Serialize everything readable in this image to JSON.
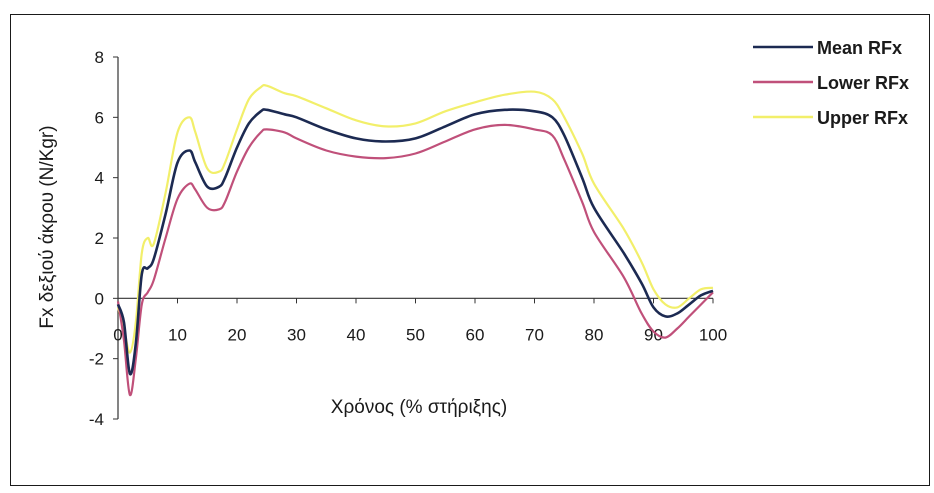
{
  "chart_data": {
    "type": "line",
    "title": "",
    "xlabel": "Χρόνος (% στήριξης)",
    "ylabel": "Fx δεξιού άκρου (N/Kgr)",
    "xlim": [
      0,
      100
    ],
    "ylim": [
      -4,
      8
    ],
    "x_ticks": [
      "0",
      "10",
      "20",
      "30",
      "40",
      "50",
      "60",
      "70",
      "80",
      "90",
      "100"
    ],
    "y_ticks": [
      "-4",
      "-2",
      "0",
      "2",
      "4",
      "6",
      "8"
    ],
    "grid": false,
    "legend_position": "top-right",
    "x": [
      0,
      1,
      2,
      3,
      4,
      5,
      6,
      8,
      10,
      12,
      13,
      15,
      17,
      18,
      20,
      22,
      24,
      25,
      28,
      30,
      35,
      40,
      45,
      50,
      55,
      60,
      65,
      70,
      73,
      75,
      78,
      80,
      85,
      88,
      90,
      92,
      94,
      96,
      98,
      100
    ],
    "series": [
      {
        "name": "Mean RFx",
        "color": "#1c2a52",
        "values": [
          -0.2,
          -0.8,
          -2.5,
          -1.5,
          0.8,
          1.0,
          1.3,
          2.8,
          4.5,
          4.9,
          4.5,
          3.7,
          3.7,
          4.0,
          5.0,
          5.8,
          6.2,
          6.25,
          6.1,
          6.0,
          5.6,
          5.3,
          5.2,
          5.3,
          5.7,
          6.1,
          6.25,
          6.2,
          6.0,
          5.4,
          4.0,
          3.0,
          1.5,
          0.5,
          -0.3,
          -0.6,
          -0.5,
          -0.2,
          0.1,
          0.25
        ]
      },
      {
        "name": "Lower RFx",
        "color": "#c0507a",
        "values": [
          -0.1,
          -1.4,
          -3.2,
          -2.0,
          -0.2,
          0.2,
          0.6,
          2.0,
          3.3,
          3.8,
          3.6,
          3.0,
          2.95,
          3.2,
          4.2,
          5.0,
          5.5,
          5.6,
          5.5,
          5.3,
          4.9,
          4.7,
          4.65,
          4.8,
          5.2,
          5.6,
          5.75,
          5.6,
          5.4,
          4.6,
          3.2,
          2.2,
          0.7,
          -0.5,
          -1.1,
          -1.3,
          -1.0,
          -0.6,
          -0.2,
          0.2
        ]
      },
      {
        "name": "Upper RFx",
        "color": "#f2ef6a",
        "values": [
          -0.3,
          -1.0,
          -1.8,
          -0.8,
          1.5,
          2.0,
          1.8,
          3.5,
          5.5,
          6.0,
          5.5,
          4.3,
          4.2,
          4.5,
          5.6,
          6.6,
          7.0,
          7.05,
          6.8,
          6.7,
          6.3,
          5.9,
          5.7,
          5.8,
          6.2,
          6.5,
          6.75,
          6.85,
          6.6,
          6.0,
          4.8,
          3.8,
          2.3,
          1.2,
          0.3,
          -0.2,
          -0.3,
          0.0,
          0.3,
          0.35
        ]
      }
    ]
  }
}
